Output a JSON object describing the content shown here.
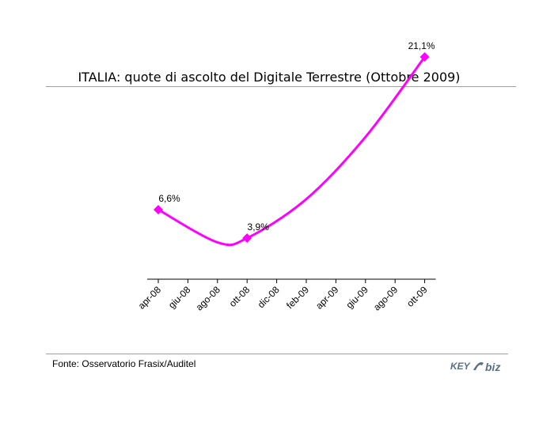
{
  "chart_data": {
    "type": "line",
    "title": "ITALIA: quote di ascolto del Digitale Terrestre (Ottobre 2009)",
    "xlabel": "",
    "ylabel": "",
    "categories": [
      "apr-08",
      "giu-08",
      "ago-08",
      "ott-08",
      "dic-08",
      "feb-09",
      "apr-09",
      "giu-09",
      "ago-09",
      "ott-09"
    ],
    "series": [
      {
        "color": "#ff00ff",
        "marker": "diamond",
        "smooth": true,
        "points": [
          {
            "x": "apr-08",
            "y": 6.6,
            "label": "6,6%"
          },
          {
            "x": "ago-08",
            "y": 3.5
          },
          {
            "x": "ott-08",
            "y": 3.9,
            "label": "3,9%"
          },
          {
            "x": "feb-09",
            "y": 7.6
          },
          {
            "x": "giu-09",
            "y": 13.5
          },
          {
            "x": "ott-09",
            "y": 21.1,
            "label": "21,1%"
          }
        ]
      }
    ],
    "ylim": [
      0,
      22
    ],
    "grid": false,
    "legend": "none"
  },
  "footer": {
    "source": "Fonte: Osservatorio Frasix/Auditel",
    "logo_text_left": "KEY",
    "logo_text_right": "biz",
    "logo_color": "#5a6f85"
  }
}
